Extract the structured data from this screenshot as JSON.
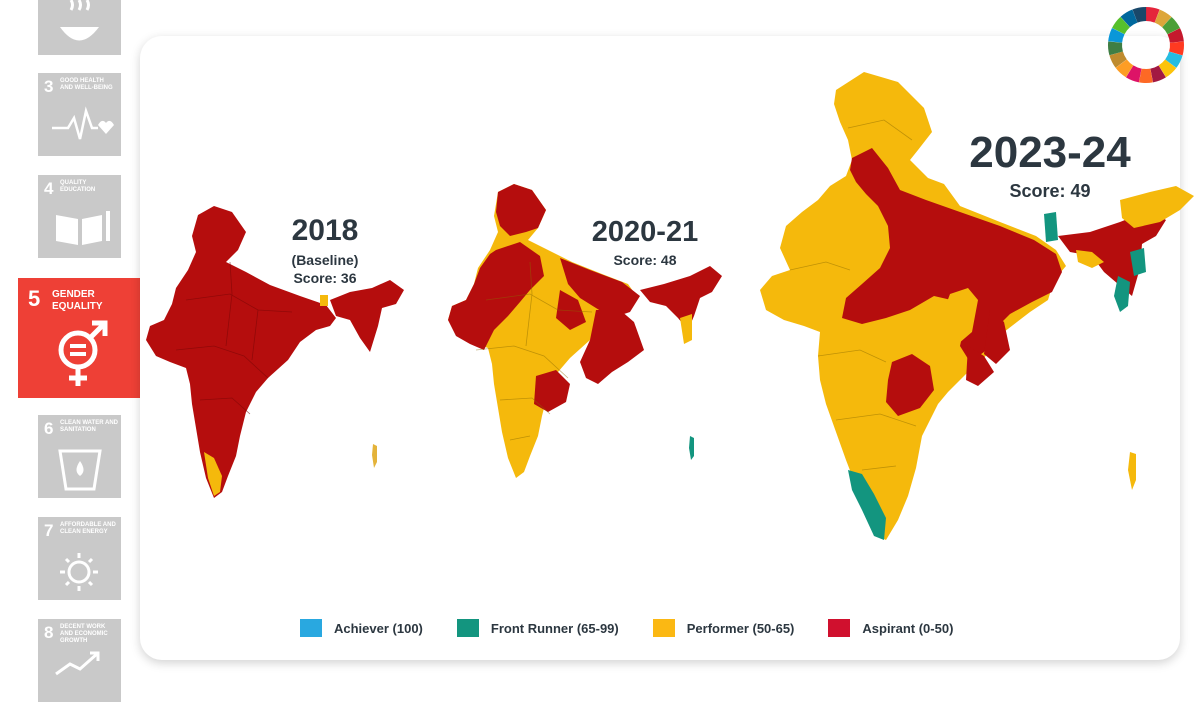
{
  "sidebar": {
    "goals": [
      {
        "number": "3",
        "name": "Good Health and Well-Being",
        "icon": "heartbeat-icon"
      },
      {
        "number": "4",
        "name": "Quality Education",
        "icon": "book-icon"
      },
      {
        "number": "5",
        "name": "Gender Equality",
        "icon": "gender-equality-icon",
        "active": true,
        "color": "#ee4036"
      },
      {
        "number": "6",
        "name": "Clean Water and Sanitation",
        "icon": "water-icon"
      },
      {
        "number": "7",
        "name": "Affordable and Clean Energy",
        "icon": "sun-icon"
      },
      {
        "number": "8",
        "name": "Decent Work and Economic Growth",
        "icon": "growth-chart-icon"
      }
    ]
  },
  "maps": [
    {
      "year": "2018",
      "subtitle": "(Baseline)",
      "score": "Score: 36"
    },
    {
      "year": "2020-21",
      "subtitle": "",
      "score": "Score: 48"
    },
    {
      "year": "2023-24",
      "subtitle": "",
      "score": "Score: 49"
    }
  ],
  "legend": [
    {
      "label": "Achiever (100)",
      "color": "#29a8e0"
    },
    {
      "label": "Front Runner (65-99)",
      "color": "#13957f"
    },
    {
      "label": "Performer (50-65)",
      "color": "#fbb813"
    },
    {
      "label": "Aspirant (0-50)",
      "color": "#d0102e"
    }
  ],
  "colors": {
    "aspirant_fill": "#b50d0d",
    "performer_fill": "#f5b90c",
    "front_runner_fill": "#13957f",
    "title_text": "#2c3740"
  },
  "logo": {
    "icon": "sdg-wheel-icon"
  }
}
